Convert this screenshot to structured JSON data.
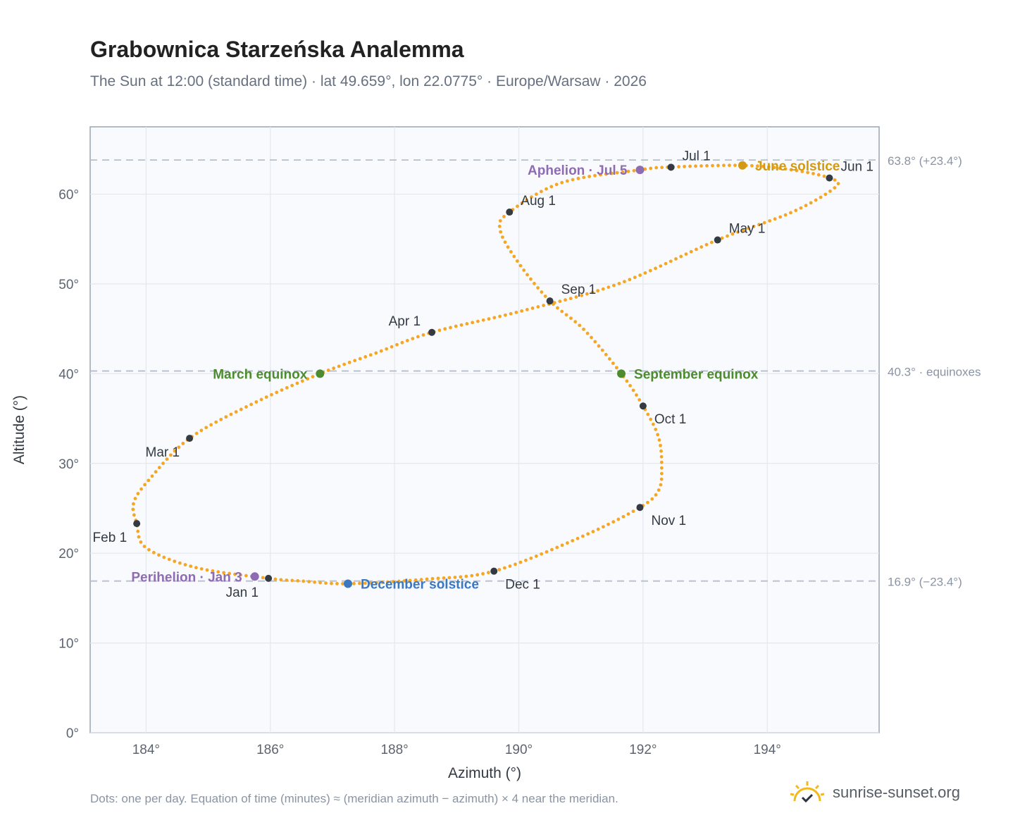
{
  "header": {
    "title": "Grabownica Starzeńska Analemma",
    "subtitle": "The Sun at 12:00 (standard time) · lat 49.659°, lon 22.0775° · Europe/Warsaw · 2026"
  },
  "footer": {
    "note": "Dots: one per day. Equation of time (minutes) ≈ (meridian azimuth − azimuth) × 4 near the meridian.",
    "brand": "sunrise-sunset.org",
    "brand_icon": "sun-checkmark-icon"
  },
  "colors": {
    "curve": "#f5a623",
    "month_marker": "#333a44",
    "perihelion_aphelion": "#8e6bb3",
    "june_solstice": "#d19a12",
    "december_solstice": "#3a78c2",
    "equinox": "#4d8c2e",
    "reference_line": "#b6bfcb",
    "plot_background": "#f8fafd",
    "grid": "#e3e8ee"
  },
  "chart_data": {
    "type": "scatter",
    "xlabel": "Azimuth (°)",
    "ylabel": "Altitude (°)",
    "xlim": [
      183.1,
      195.8
    ],
    "ylim": [
      0,
      67.5
    ],
    "xticks": [
      184,
      186,
      188,
      190,
      192,
      194
    ],
    "xtick_labels": [
      "184°",
      "186°",
      "188°",
      "190°",
      "192°",
      "194°"
    ],
    "yticks": [
      0,
      10,
      20,
      30,
      40,
      50,
      60
    ],
    "ytick_labels": [
      "0°",
      "10°",
      "20°",
      "30°",
      "40°",
      "50°",
      "60°"
    ],
    "grid": true,
    "reference_lines": [
      {
        "y": 63.8,
        "label": "63.8° (+23.4°)"
      },
      {
        "y": 40.3,
        "label": "40.3° · equinoxes"
      },
      {
        "y": 16.9,
        "label": "16.9° (−23.4°)"
      }
    ],
    "path_anchors": [
      {
        "x": 185.97,
        "y": 17.2
      },
      {
        "x": 184.8,
        "y": 18.4
      },
      {
        "x": 184.0,
        "y": 20.6
      },
      {
        "x": 183.85,
        "y": 23.3
      },
      {
        "x": 183.8,
        "y": 25.6
      },
      {
        "x": 184.05,
        "y": 28.2
      },
      {
        "x": 184.7,
        "y": 32.8
      },
      {
        "x": 185.7,
        "y": 36.6
      },
      {
        "x": 186.8,
        "y": 40.0
      },
      {
        "x": 187.7,
        "y": 42.3
      },
      {
        "x": 188.6,
        "y": 44.6
      },
      {
        "x": 190.0,
        "y": 46.9
      },
      {
        "x": 191.6,
        "y": 50.0
      },
      {
        "x": 193.2,
        "y": 54.9
      },
      {
        "x": 194.4,
        "y": 58.0
      },
      {
        "x": 195.1,
        "y": 60.8
      },
      {
        "x": 195.0,
        "y": 61.8
      },
      {
        "x": 194.4,
        "y": 62.7
      },
      {
        "x": 193.6,
        "y": 63.2
      },
      {
        "x": 192.4,
        "y": 63.0
      },
      {
        "x": 191.95,
        "y": 62.7
      },
      {
        "x": 190.7,
        "y": 61.3
      },
      {
        "x": 189.85,
        "y": 58.0
      },
      {
        "x": 189.7,
        "y": 56.0
      },
      {
        "x": 190.0,
        "y": 52.3
      },
      {
        "x": 190.5,
        "y": 48.1
      },
      {
        "x": 191.05,
        "y": 44.9
      },
      {
        "x": 191.65,
        "y": 40.0
      },
      {
        "x": 192.0,
        "y": 36.4
      },
      {
        "x": 192.25,
        "y": 32.9
      },
      {
        "x": 192.3,
        "y": 29.5
      },
      {
        "x": 192.25,
        "y": 27.0
      },
      {
        "x": 191.95,
        "y": 25.1
      },
      {
        "x": 191.0,
        "y": 21.8
      },
      {
        "x": 189.6,
        "y": 18.0
      },
      {
        "x": 188.5,
        "y": 17.1
      },
      {
        "x": 187.25,
        "y": 16.6
      },
      {
        "x": 186.5,
        "y": 16.9
      },
      {
        "x": 185.97,
        "y": 17.2
      }
    ],
    "month_markers": [
      {
        "label": "Jan 1",
        "x": 185.97,
        "y": 17.2,
        "anchor": "below-left"
      },
      {
        "label": "Feb 1",
        "x": 183.85,
        "y": 23.3,
        "anchor": "below-left"
      },
      {
        "label": "Mar 1",
        "x": 184.7,
        "y": 32.8,
        "anchor": "below-left"
      },
      {
        "label": "Apr 1",
        "x": 188.6,
        "y": 44.6,
        "anchor": "above-left"
      },
      {
        "label": "May 1",
        "x": 193.2,
        "y": 54.9,
        "anchor": "above-right"
      },
      {
        "label": "Jun 1",
        "x": 195.0,
        "y": 61.8,
        "anchor": "above-right"
      },
      {
        "label": "Jul 1",
        "x": 192.45,
        "y": 63.0,
        "anchor": "above-right"
      },
      {
        "label": "Aug 1",
        "x": 189.85,
        "y": 58.0,
        "anchor": "above-right"
      },
      {
        "label": "Sep 1",
        "x": 190.5,
        "y": 48.1,
        "anchor": "above-right"
      },
      {
        "label": "Oct 1",
        "x": 192.0,
        "y": 36.4,
        "anchor": "below-right"
      },
      {
        "label": "Nov 1",
        "x": 191.95,
        "y": 25.1,
        "anchor": "below-right"
      },
      {
        "label": "Dec 1",
        "x": 189.6,
        "y": 18.0,
        "anchor": "below-right"
      }
    ],
    "events": [
      {
        "label": "June solstice",
        "x": 193.6,
        "y": 63.2,
        "kind": "june_solstice",
        "anchor": "right"
      },
      {
        "label": "Aphelion · Jul 5",
        "x": 191.95,
        "y": 62.7,
        "kind": "perihelion_aphelion",
        "anchor": "left"
      },
      {
        "label": "March equinox",
        "x": 186.8,
        "y": 40.0,
        "kind": "equinox",
        "anchor": "left"
      },
      {
        "label": "September equinox",
        "x": 191.65,
        "y": 40.0,
        "kind": "equinox",
        "anchor": "right"
      },
      {
        "label": "December solstice",
        "x": 187.25,
        "y": 16.6,
        "kind": "december_solstice",
        "anchor": "right"
      },
      {
        "label": "Perihelion · Jan 3",
        "x": 185.75,
        "y": 17.4,
        "kind": "perihelion_aphelion",
        "anchor": "left"
      }
    ]
  }
}
